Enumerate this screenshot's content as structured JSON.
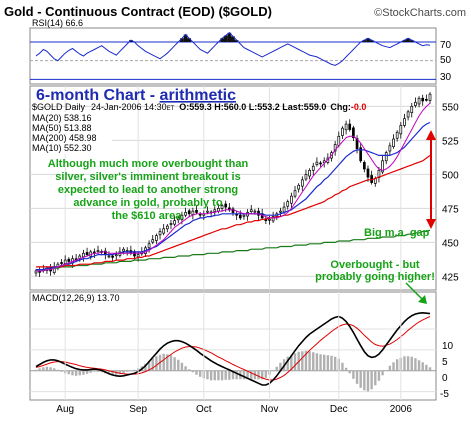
{
  "header": {
    "title": "Gold - Continuous Contract (EOD) ($GOLD)",
    "brand": "©StockCharts.com"
  },
  "rsi": {
    "label": "RSI(14) 66.6",
    "ticks": [
      "70",
      "50",
      "30"
    ],
    "values": [
      55,
      58,
      62,
      60,
      56,
      52,
      50,
      54,
      58,
      61,
      63,
      60,
      57,
      55,
      58,
      60,
      62,
      64,
      66,
      63,
      60,
      58,
      56,
      60,
      64,
      68,
      72,
      70,
      66,
      63,
      60,
      58,
      56,
      54,
      52,
      55,
      58,
      62,
      66,
      70,
      74,
      78,
      74,
      70,
      66,
      62,
      60,
      58,
      62,
      66,
      70,
      74,
      77,
      80,
      76,
      72,
      68,
      64,
      62,
      60,
      58,
      56,
      54,
      56,
      58,
      60,
      62,
      64,
      66,
      68,
      66,
      64,
      62,
      60,
      58,
      56,
      55,
      54,
      52,
      50,
      48,
      46,
      45,
      47,
      50,
      54,
      58,
      62,
      66,
      70,
      72,
      74,
      72,
      70,
      68,
      66,
      65,
      64,
      66,
      68,
      70,
      72,
      74,
      72,
      70,
      68,
      66,
      67,
      66.6
    ]
  },
  "headline": {
    "prefix": "6-month Chart - ",
    "highlight": "arithmetic"
  },
  "infoline": {
    "symbol": "$GOLD Daily",
    "date": "24-Jan-2006 14:30",
    "et": "ET",
    "ohlc": "O:559.3 H:560.0 L:553.2 Last:559.0",
    "chg_label": "Chg:",
    "chg_value": "-0.0"
  },
  "legend": [
    {
      "label": "MA(20) 538.16",
      "color": "#1a2bcf"
    },
    {
      "label": "MA(50) 513.88",
      "color": "#e00000"
    },
    {
      "label": "MA(200) 458.98",
      "color": "#1a7a1a"
    },
    {
      "label": "MA(10) 552.30",
      "color": "#c000c0"
    }
  ],
  "annotations": {
    "note": [
      "Although much more overbought than",
      "silver, silver's imminent breakout is",
      "expected to lead to another strong",
      "advance in gold, probably to",
      "the $610 area."
    ],
    "gap": "Big m.a. gap",
    "overbought": [
      "Overbought - but",
      "probably going higher!"
    ]
  },
  "macd": {
    "label": "MACD(12,26,9) 13.70",
    "ticks": [
      "10",
      "5",
      "0",
      "-5"
    ]
  },
  "chart_data": {
    "type": "candlestick",
    "x_labels": [
      "Aug",
      "Sep",
      "Oct",
      "Nov",
      "Dec",
      "2006"
    ],
    "y_ticks": [
      425,
      450,
      475,
      500,
      525,
      550
    ],
    "ylim": [
      415,
      565
    ],
    "closes": [
      429,
      428,
      430,
      431,
      429,
      432,
      434,
      435,
      437,
      436,
      438,
      437,
      440,
      442,
      441,
      443,
      442,
      444,
      443,
      441,
      440,
      439,
      441,
      443,
      445,
      444,
      442,
      440,
      441,
      443,
      446,
      449,
      452,
      455,
      458,
      460,
      462,
      464,
      466,
      468,
      470,
      472,
      471,
      473,
      472,
      470,
      471,
      473,
      472,
      474,
      475,
      477,
      476,
      474,
      472,
      470,
      468,
      470,
      472,
      474,
      473,
      470,
      468,
      466,
      467,
      469,
      471,
      473,
      476,
      480,
      484,
      488,
      492,
      496,
      500,
      503,
      506,
      509,
      508,
      510,
      512,
      516,
      522,
      528,
      534,
      537,
      533,
      527,
      519,
      510,
      504,
      498,
      494,
      497,
      503,
      510,
      516,
      521,
      526,
      531,
      536,
      541,
      546,
      550,
      553,
      556,
      554,
      555,
      559
    ],
    "ma20": [
      430,
      430,
      430,
      431,
      431,
      432,
      432,
      433,
      434,
      434,
      435,
      436,
      437,
      438,
      438,
      439,
      440,
      441,
      441,
      441,
      441,
      441,
      442,
      442,
      443,
      443,
      443,
      443,
      443,
      443,
      444,
      445,
      446,
      447,
      449,
      451,
      453,
      455,
      457,
      459,
      461,
      463,
      464,
      466,
      467,
      468,
      468,
      469,
      469,
      470,
      470,
      471,
      471,
      471,
      471,
      471,
      471,
      471,
      471,
      471,
      471,
      471,
      471,
      470,
      470,
      470,
      470,
      471,
      472,
      473,
      474,
      476,
      478,
      480,
      482,
      485,
      488,
      491,
      493,
      496,
      498,
      501,
      504,
      507,
      510,
      513,
      515,
      517,
      518,
      518,
      518,
      517,
      516,
      515,
      514,
      514,
      514,
      514,
      515,
      516,
      518,
      520,
      523,
      526,
      529,
      532,
      535,
      537,
      538.16
    ],
    "ma50": [
      432,
      432,
      432,
      432,
      432,
      432,
      432,
      432,
      433,
      433,
      433,
      433,
      434,
      434,
      434,
      434,
      435,
      435,
      435,
      436,
      436,
      436,
      437,
      437,
      437,
      438,
      438,
      438,
      439,
      439,
      440,
      440,
      441,
      442,
      443,
      444,
      445,
      446,
      447,
      448,
      449,
      450,
      451,
      452,
      453,
      454,
      455,
      456,
      457,
      458,
      459,
      460,
      460,
      461,
      462,
      463,
      463,
      464,
      465,
      465,
      466,
      466,
      467,
      467,
      468,
      468,
      469,
      469,
      470,
      470,
      471,
      472,
      473,
      474,
      475,
      476,
      477,
      478,
      479,
      480,
      482,
      483,
      485,
      486,
      488,
      489,
      491,
      492,
      493,
      494,
      495,
      496,
      496,
      497,
      498,
      499,
      500,
      501,
      502,
      503,
      504,
      505,
      506,
      507,
      508,
      509,
      510,
      512,
      513.88
    ],
    "ma200": [
      430,
      430,
      430,
      431,
      431,
      431,
      431,
      432,
      432,
      432,
      432,
      433,
      433,
      433,
      433,
      434,
      434,
      434,
      434,
      435,
      435,
      435,
      435,
      436,
      436,
      436,
      436,
      437,
      437,
      437,
      437,
      438,
      438,
      438,
      438,
      439,
      439,
      439,
      439,
      440,
      440,
      440,
      440,
      441,
      441,
      441,
      441,
      442,
      442,
      442,
      442,
      443,
      443,
      443,
      443,
      444,
      444,
      444,
      444,
      445,
      445,
      445,
      445,
      446,
      446,
      446,
      446,
      447,
      447,
      447,
      447,
      448,
      448,
      448,
      448,
      449,
      449,
      449,
      449,
      450,
      450,
      450,
      450,
      451,
      451,
      451,
      451,
      452,
      452,
      452,
      452,
      453,
      453,
      453,
      453,
      454,
      454,
      454,
      454,
      455,
      455,
      455,
      456,
      456,
      457,
      457,
      458,
      458,
      458.98
    ],
    "ma10": [
      429,
      429,
      429,
      430,
      430,
      431,
      432,
      433,
      434,
      435,
      436,
      437,
      438,
      439,
      440,
      441,
      442,
      442,
      443,
      443,
      442,
      442,
      442,
      442,
      442,
      442,
      442,
      442,
      442,
      442,
      443,
      444,
      446,
      448,
      450,
      452,
      455,
      458,
      461,
      463,
      465,
      467,
      469,
      470,
      471,
      471,
      471,
      471,
      472,
      472,
      473,
      473,
      474,
      474,
      474,
      473,
      472,
      471,
      471,
      471,
      471,
      471,
      470,
      469,
      468,
      468,
      468,
      469,
      470,
      472,
      475,
      479,
      483,
      487,
      491,
      495,
      499,
      502,
      505,
      508,
      511,
      514,
      518,
      521,
      524,
      527,
      528,
      528,
      526,
      523,
      519,
      515,
      511,
      507,
      504,
      503,
      504,
      506,
      509,
      513,
      518,
      523,
      528,
      533,
      538,
      543,
      547,
      550,
      552.3
    ],
    "macd_line": [
      1,
      1.5,
      2,
      2.4,
      2.6,
      2.6,
      2.4,
      2,
      1.6,
      1.2,
      0.8,
      0.5,
      0.3,
      0.2,
      0.2,
      0.3,
      0.4,
      0.3,
      0.1,
      -0.3,
      -0.7,
      -1,
      -1.2,
      -1.3,
      -1.2,
      -1,
      -0.8,
      -0.6,
      -0.2,
      0.4,
      1.2,
      2.2,
      3.2,
      4.2,
      5.2,
      6,
      6.6,
      7,
      7.2,
      7.2,
      7,
      6.6,
      6.1,
      5.5,
      4.9,
      4.2,
      3.6,
      3,
      2.4,
      1.9,
      1.4,
      1,
      0.6,
      0.2,
      -0.2,
      -0.6,
      -1,
      -1.4,
      -1.8,
      -2.2,
      -2.6,
      -3,
      -3.4,
      -3.4,
      -3,
      -2.2,
      -1.2,
      0,
      1.2,
      2.4,
      3.6,
      4.8,
      6,
      7,
      8,
      8.8,
      9.4,
      10,
      10.6,
      11.2,
      11.8,
      12.4,
      12.8,
      13,
      12.6,
      11.8,
      10.6,
      9.2,
      7.6,
      6,
      4.6,
      3.6,
      3.2,
      3.4,
      4,
      5,
      6.2,
      7.4,
      8.6,
      9.8,
      10.8,
      11.8,
      12.6,
      13.2,
      13.6,
      13.8,
      13.9,
      13.8,
      13.7
    ],
    "macd_signal": [
      0.8,
      1,
      1.3,
      1.6,
      1.9,
      2.1,
      2.2,
      2.2,
      2.1,
      1.9,
      1.7,
      1.5,
      1.2,
      1,
      0.8,
      0.7,
      0.6,
      0.5,
      0.4,
      0.2,
      0,
      -0.2,
      -0.4,
      -0.6,
      -0.7,
      -0.8,
      -0.8,
      -0.8,
      -0.7,
      -0.5,
      -0.2,
      0.2,
      0.7,
      1.3,
      2,
      2.6,
      3.3,
      3.9,
      4.5,
      5,
      5.4,
      5.7,
      5.8,
      5.8,
      5.7,
      5.4,
      5.1,
      4.7,
      4.3,
      3.8,
      3.3,
      2.9,
      2.4,
      2,
      1.5,
      1.1,
      0.7,
      0.3,
      -0.1,
      -0.5,
      -0.9,
      -1.3,
      -1.7,
      -2,
      -2.2,
      -2.2,
      -2,
      -1.6,
      -1.1,
      -0.4,
      0.4,
      1.3,
      2.2,
      3.1,
      4,
      4.9,
      5.7,
      6.5,
      7.3,
      8,
      8.7,
      9.4,
      10,
      10.6,
      11,
      11.2,
      11.1,
      10.8,
      10.2,
      9.4,
      8.5,
      7.7,
      6.9,
      6.3,
      6,
      5.9,
      6.1,
      6.4,
      6.9,
      7.5,
      8.2,
      8.9,
      9.7,
      10.4,
      11.1,
      11.7,
      12.2,
      12.6,
      13
    ]
  }
}
